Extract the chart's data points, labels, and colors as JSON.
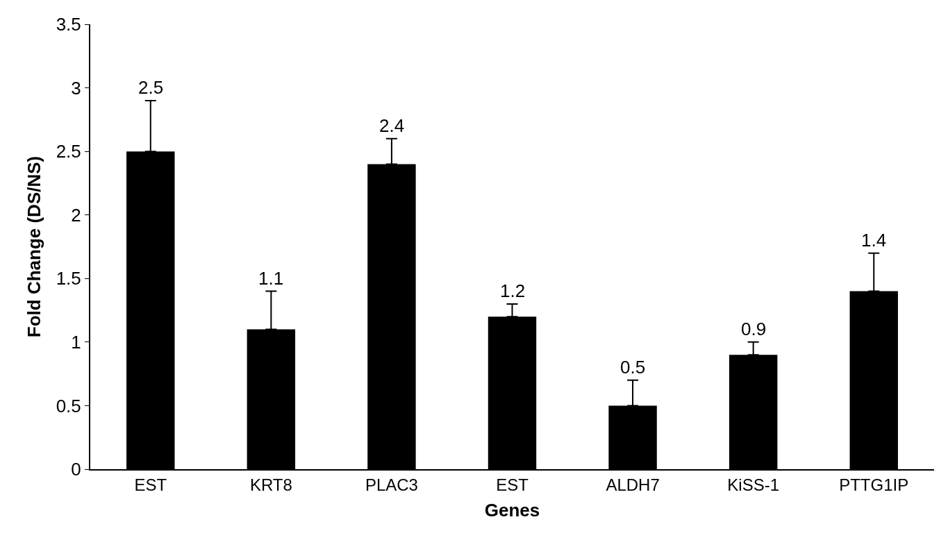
{
  "chart_data": {
    "type": "bar",
    "xlabel": "Genes",
    "ylabel": "Fold Change (DS/NS)",
    "categories": [
      "EST",
      "KRT8",
      "PLAC3",
      "EST",
      "ALDH7",
      "KiSS-1",
      "PTTG1IP"
    ],
    "values": [
      2.5,
      1.1,
      2.4,
      1.2,
      0.5,
      0.9,
      1.4
    ],
    "errors": [
      [
        2.5,
        2.9
      ],
      [
        1.1,
        1.4
      ],
      [
        2.4,
        2.6
      ],
      [
        1.2,
        1.3
      ],
      [
        0.5,
        0.7
      ],
      [
        0.9,
        1.0
      ],
      [
        1.4,
        1.7
      ]
    ],
    "color": "#000000",
    "data_labels": true,
    "legend": false,
    "ylim": [
      0,
      3.5
    ],
    "yticks": [
      0,
      0.5,
      1,
      1.5,
      2,
      2.5,
      3,
      3.5
    ]
  }
}
